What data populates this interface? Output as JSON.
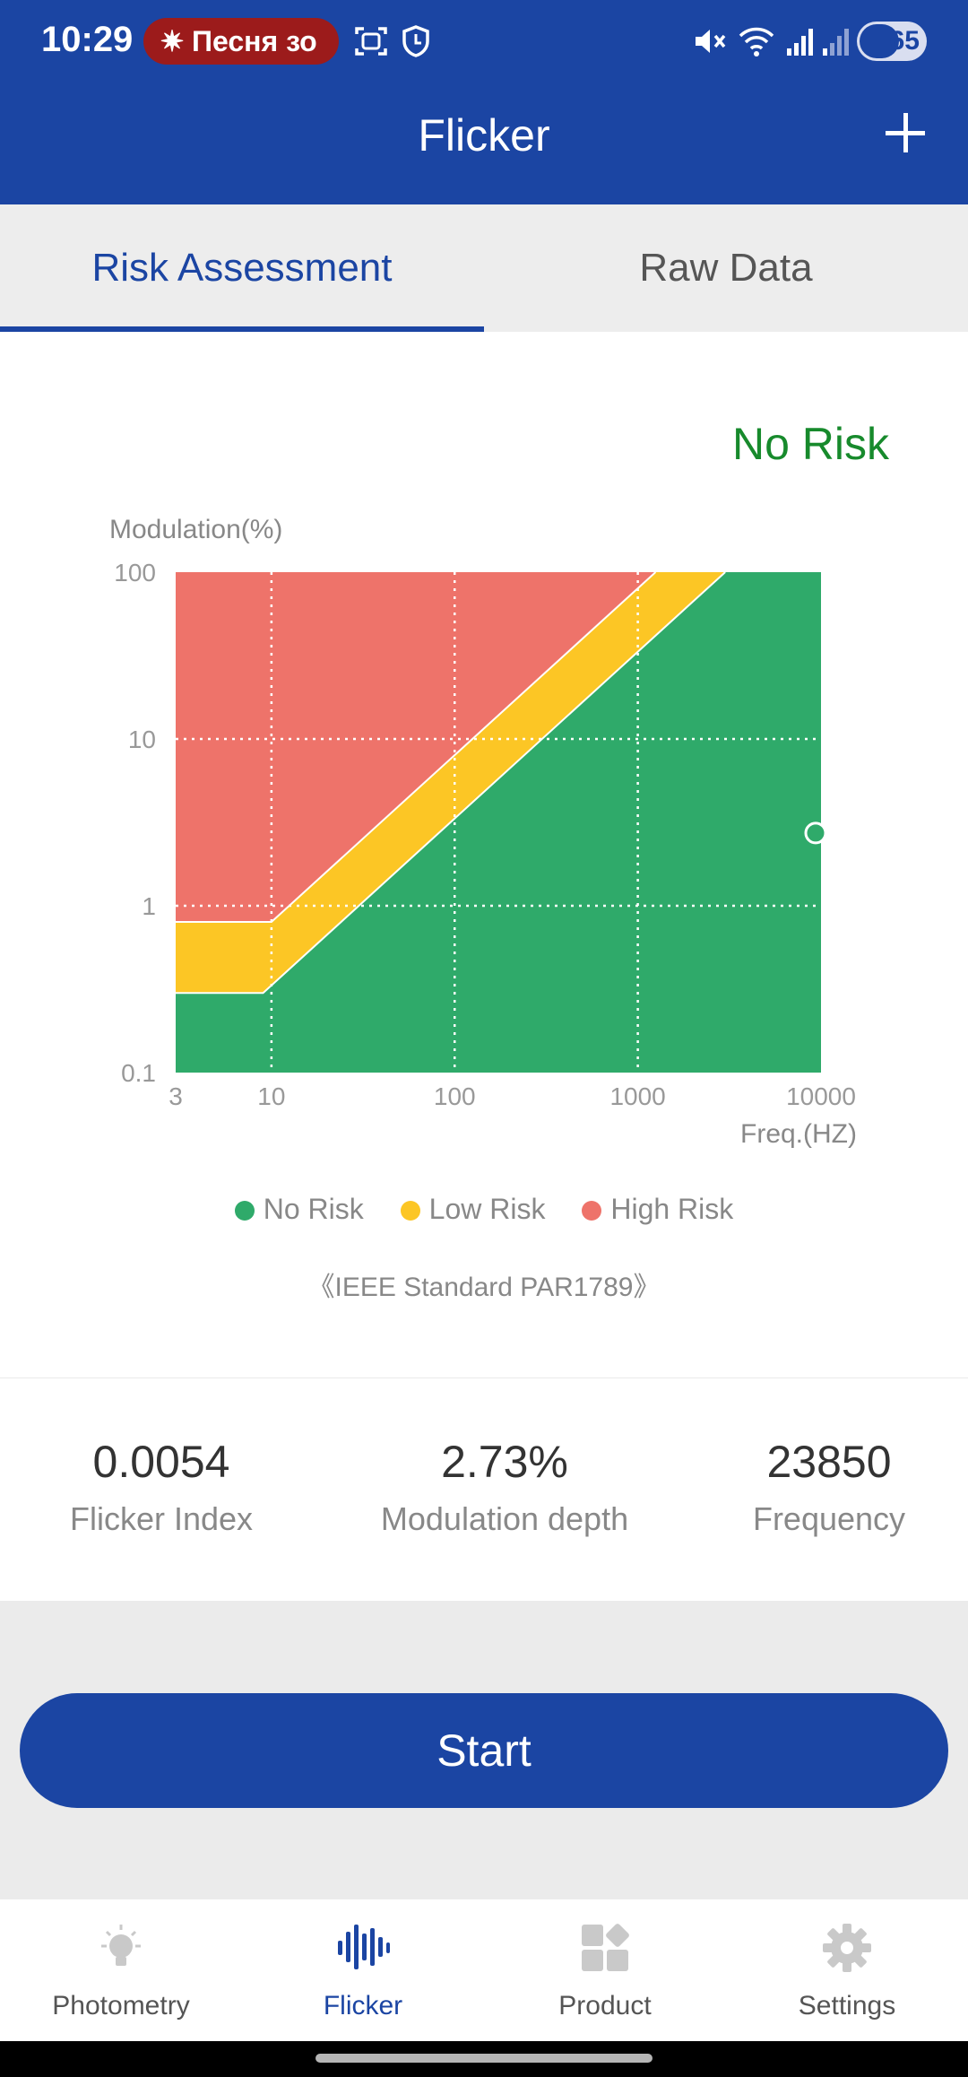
{
  "status_bar": {
    "time": "10:29",
    "notification_pill": "Песня зо",
    "battery": "65"
  },
  "app_bar": {
    "title": "Flicker",
    "add_icon": "plus-icon"
  },
  "tabs": [
    {
      "label": "Risk Assessment",
      "active": true
    },
    {
      "label": "Raw Data",
      "active": false
    }
  ],
  "assessment": {
    "result": "No Risk",
    "result_color": "#178a2c"
  },
  "chart_data": {
    "type": "area",
    "ylabel": "Modulation(%)",
    "xlabel": "Freq.(HZ)",
    "x_scale": "log",
    "y_scale": "log",
    "xlim": [
      3,
      10000
    ],
    "ylim": [
      0.1,
      100
    ],
    "x_ticks": [
      "3",
      "10",
      "100",
      "1000",
      "10000"
    ],
    "y_ticks": [
      "100",
      "10",
      "1",
      "0.1"
    ],
    "grid": "dotted",
    "regions": [
      {
        "name": "No Risk",
        "color": "#2faa6a",
        "boundary": [
          [
            3,
            0.3
          ],
          [
            9,
            0.3
          ],
          [
            3000,
            100
          ]
        ]
      },
      {
        "name": "Low Risk",
        "color": "#fcc625",
        "boundary_low": [
          [
            3,
            0.3
          ],
          [
            9,
            0.3
          ],
          [
            3000,
            100
          ]
        ],
        "boundary_high": [
          [
            3,
            0.8
          ],
          [
            10,
            0.8
          ],
          [
            1250,
            100
          ]
        ]
      },
      {
        "name": "High Risk",
        "color": "#ee736a",
        "boundary": [
          [
            3,
            0.8
          ],
          [
            10,
            0.8
          ],
          [
            1250,
            100
          ]
        ]
      }
    ],
    "points": [
      {
        "x": 10000,
        "y": 2.73
      }
    ],
    "legend": [
      "No Risk",
      "Low Risk",
      "High Risk"
    ],
    "legend_position": "bottom-center",
    "caption": "《IEEE Standard PAR1789》"
  },
  "metrics": [
    {
      "value": "0.0054",
      "label": "Flicker Index"
    },
    {
      "value": "2.73%",
      "label": "Modulation depth"
    },
    {
      "value": "23850",
      "label": "Frequency"
    }
  ],
  "start_button": {
    "label": "Start"
  },
  "bottom_nav": [
    {
      "label": "Photometry",
      "icon": "bulb-icon",
      "active": false
    },
    {
      "label": "Flicker",
      "icon": "waveform-icon",
      "active": true
    },
    {
      "label": "Product",
      "icon": "grid-icon",
      "active": false
    },
    {
      "label": "Settings",
      "icon": "gear-icon",
      "active": false
    }
  ],
  "colors": {
    "primary": "#1b45a3",
    "no_risk": "#2faa6a",
    "low_risk": "#fcc625",
    "high_risk": "#ee736a"
  }
}
